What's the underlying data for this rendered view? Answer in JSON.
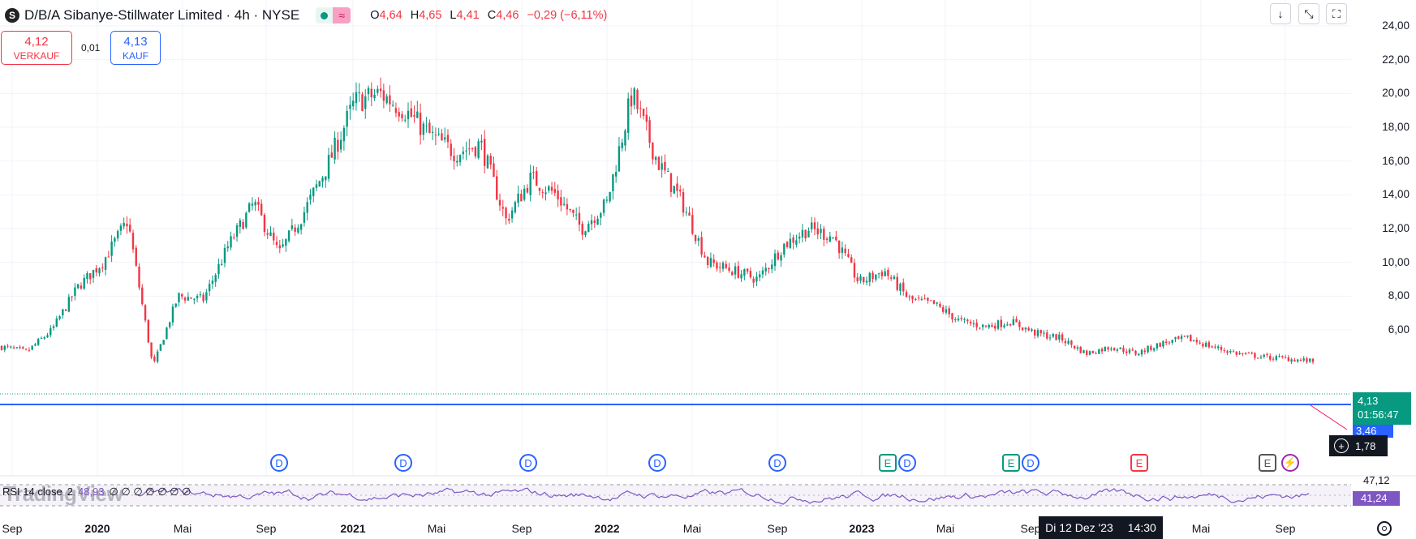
{
  "header": {
    "title": "D/B/A Sibanye-Stillwater Limited · 4h · NYSE",
    "logo_letter": "S",
    "ohlc": {
      "o_label": "O",
      "o": "4,64",
      "h_label": "H",
      "h": "4,65",
      "l_label": "L",
      "l": "4,41",
      "c_label": "C",
      "c": "4,46",
      "change": "−0,29 (−6,11%)"
    }
  },
  "trade": {
    "sell_price": "4,12",
    "sell_label": "VERKAUF",
    "spread": "0,01",
    "buy_price": "4,13",
    "buy_label": "KAUF"
  },
  "toolbar": {
    "icons": [
      "arrow-down-icon",
      "collapse-icon",
      "fullscreen-icon"
    ]
  },
  "price_axis": {
    "labels": [
      "24,00",
      "22,00",
      "20,00",
      "18,00",
      "16,00",
      "14,00",
      "12,00",
      "10,00",
      "8,00",
      "6,00"
    ],
    "last_price": "4,13",
    "countdown": "01:56:47",
    "hline_price": "3,46",
    "crosshair_value": "1,78"
  },
  "events": [
    "D",
    "D",
    "D",
    "D",
    "D",
    "E",
    "D",
    "E",
    "D",
    "E",
    "E"
  ],
  "rsi": {
    "label": "RSI 14 close",
    "value_prefix": "2",
    "value": "48,93",
    "empty_values": "∅ ∅ ∅ ∅ ∅ ∅ ∅",
    "axis_label": "47,12",
    "current": "41,24"
  },
  "watermark": "TradingView",
  "time_axis": {
    "labels": [
      "Sep",
      "2020",
      "Mai",
      "Sep",
      "2021",
      "Mai",
      "Sep",
      "2022",
      "Mai",
      "Sep",
      "2023",
      "Mai",
      "Sep",
      "Mai",
      "Sep"
    ],
    "crosshair_date": "Di 12 Dez '23",
    "crosshair_time": "14:30"
  },
  "colors": {
    "up": "#089981",
    "down": "#f23645",
    "hline": "#2962ff",
    "rsi": "#7e57c2"
  },
  "chart_data": {
    "type": "candlestick",
    "title": "D/B/A Sibanye-Stillwater Limited · 4h · NYSE",
    "ylim": [
      3.0,
      24.5
    ],
    "grid": true,
    "x": [
      "2019-07",
      "2019-09",
      "2019-11",
      "2020-01",
      "2020-02",
      "2020-03",
      "2020-04",
      "2020-06",
      "2020-08",
      "2020-09",
      "2020-10",
      "2020-12",
      "2021-01",
      "2021-02",
      "2021-03",
      "2021-05",
      "2021-06",
      "2021-07",
      "2021-08",
      "2021-09",
      "2021-10",
      "2021-12",
      "2022-01",
      "2022-02",
      "2022-03",
      "2022-04",
      "2022-05",
      "2022-06",
      "2022-08",
      "2022-09",
      "2022-10",
      "2022-12",
      "2023-01",
      "2023-02",
      "2023-03",
      "2023-04",
      "2023-05",
      "2023-06",
      "2023-07",
      "2023-08",
      "2023-09",
      "2023-10",
      "2023-11",
      "2023-12",
      "2024-01",
      "2024-03",
      "2024-04",
      "2024-05",
      "2024-06",
      "2024-08",
      "2024-09",
      "2024-10",
      "2024-11"
    ],
    "close": [
      5.0,
      4.7,
      6.0,
      8.5,
      10.0,
      12.5,
      3.8,
      8.0,
      7.8,
      11.0,
      13.5,
      10.5,
      13.0,
      16.0,
      19.5,
      20.0,
      19.0,
      17.5,
      16.5,
      17.0,
      12.5,
      15.0,
      14.0,
      12.0,
      13.5,
      20.0,
      16.0,
      13.5,
      10.0,
      9.5,
      9.0,
      11.0,
      12.0,
      11.5,
      8.8,
      9.5,
      7.8,
      7.5,
      6.5,
      6.2,
      6.5,
      5.8,
      5.5,
      4.6,
      5.0,
      4.6,
      5.2,
      5.5,
      5.0,
      4.6,
      4.4,
      4.3,
      4.13
    ],
    "hline": 3.46,
    "rsi_last": 41.24
  }
}
